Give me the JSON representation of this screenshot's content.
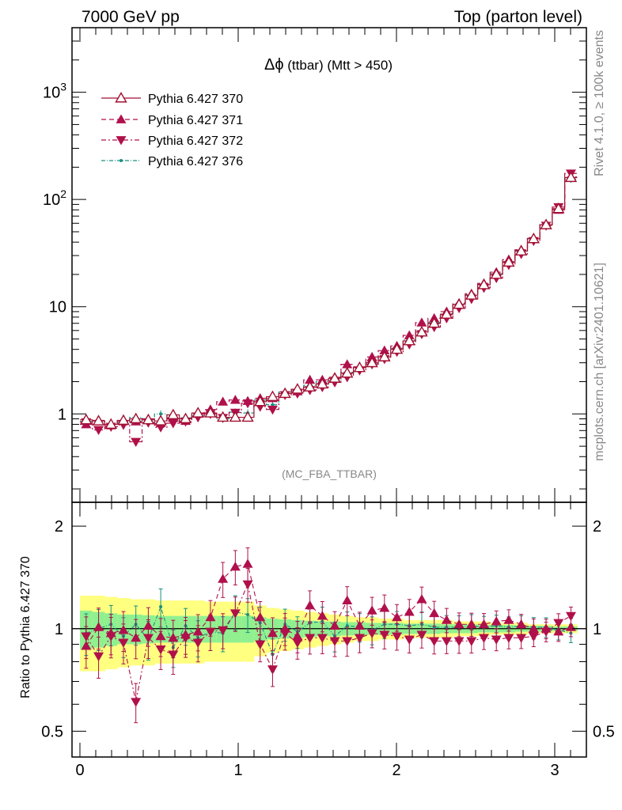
{
  "header": {
    "left": "7000 GeV pp",
    "right": "Top (parton level)"
  },
  "side_labels": {
    "rivet": "Rivet 4.1.0, ≥ 100k events",
    "mcplots": "mcplots.cern.ch [arXiv:2401.10621]"
  },
  "analysis_tag": "(MC_FBA_TTBAR)",
  "colors": {
    "s370": "#a01030",
    "s371": "#b0104c",
    "s372": "#b01048",
    "s376": "#199080",
    "band_outer": "#ffff80",
    "band_inner": "#90f090",
    "ref_line": "#000000"
  },
  "icons": {
    "triangle_open": "legend-open-triangle-icon",
    "triangle_up": "legend-filled-triangle-up-icon",
    "triangle_down": "legend-filled-triangle-down-icon",
    "dot": "legend-dot-icon"
  },
  "chart_data": [
    {
      "type": "line",
      "panel": "main",
      "title": "Δϕ (ttbar) (Mtt > 450)",
      "title_parts": {
        "symbol": "Δϕ",
        "text": " (ttbar) (Mtt > 450)"
      },
      "xlabel": "",
      "ylabel": "",
      "yscale": "log",
      "xlim": [
        -0.05,
        3.2
      ],
      "ylim": [
        0.15,
        4000
      ],
      "yticks": [
        {
          "value": 1,
          "label": "1"
        },
        {
          "value": 10,
          "label": "10"
        },
        {
          "value": 100,
          "label": "10",
          "exp": "2"
        },
        {
          "value": 1000,
          "label": "10",
          "exp": "3"
        }
      ],
      "legend": [
        {
          "name": "Pythia 6.427 370",
          "marker": "triangle-open",
          "dash": "solid"
        },
        {
          "name": "Pythia 6.427 371",
          "marker": "triangle-up",
          "dash": "dashed"
        },
        {
          "name": "Pythia 6.427 372",
          "marker": "triangle-down",
          "dash": "dashdot"
        },
        {
          "name": "Pythia 6.427 376",
          "marker": "dot",
          "dash": "dashdot"
        }
      ],
      "x": [
        0.0393,
        0.1178,
        0.1963,
        0.2749,
        0.3534,
        0.432,
        0.5105,
        0.589,
        0.6676,
        0.7461,
        0.8247,
        0.9032,
        0.9817,
        1.0603,
        1.1388,
        1.2174,
        1.2959,
        1.3744,
        1.453,
        1.5315,
        1.6101,
        1.6886,
        1.7671,
        1.8457,
        1.9242,
        2.0028,
        2.0813,
        2.1598,
        2.2384,
        2.3169,
        2.3955,
        2.474,
        2.5525,
        2.6311,
        2.7096,
        2.7882,
        2.8667,
        2.9452,
        3.0238,
        3.1023
      ],
      "series": [
        {
          "name": "Pythia 6.427 370",
          "values": [
            0.88,
            0.86,
            0.8,
            0.87,
            0.9,
            0.88,
            0.86,
            0.98,
            0.9,
            1.02,
            1.02,
            0.93,
            0.93,
            0.93,
            1.3,
            1.45,
            1.55,
            1.7,
            1.78,
            1.9,
            2.15,
            2.4,
            2.7,
            3.0,
            3.4,
            4.0,
            4.8,
            5.8,
            7.0,
            8.5,
            10.5,
            12.8,
            16.0,
            20.0,
            26.0,
            33.0,
            43.0,
            58.0,
            82.0,
            160.0
          ]
        },
        {
          "name": "Pythia 6.427 371",
          "values": [
            0.8,
            0.87,
            0.78,
            0.86,
            0.85,
            0.9,
            0.82,
            0.92,
            0.86,
            1.0,
            1.1,
            1.3,
            1.35,
            1.32,
            1.4,
            1.4,
            1.55,
            1.62,
            2.08,
            2.08,
            2.2,
            2.9,
            2.75,
            3.4,
            3.9,
            4.3,
            5.4,
            7.1,
            7.8,
            9.0,
            10.8,
            13.2,
            16.5,
            21.0,
            27.5,
            34.0,
            43.0,
            58.0,
            80.0,
            162.0
          ]
        },
        {
          "name": "Pythia 6.427 372",
          "values": [
            0.84,
            0.71,
            0.76,
            0.79,
            0.55,
            0.83,
            0.75,
            0.82,
            0.85,
            0.93,
            1.0,
            0.92,
            1.03,
            1.26,
            1.17,
            1.1,
            1.5,
            1.55,
            1.67,
            1.78,
            1.97,
            2.2,
            2.55,
            2.9,
            3.25,
            3.8,
            4.45,
            5.55,
            6.45,
            7.8,
            9.7,
            11.8,
            15.0,
            18.5,
            24.5,
            31.0,
            41.0,
            57.0,
            85.0,
            175.0
          ]
        },
        {
          "name": "Pythia 6.427 376",
          "values": [
            0.85,
            0.86,
            0.82,
            0.83,
            0.93,
            0.82,
            1.0,
            0.86,
            0.92,
            0.96,
            1.0,
            0.9,
            1.04,
            1.02,
            1.35,
            1.22,
            1.6,
            1.67,
            1.85,
            2.0,
            2.05,
            2.45,
            2.72,
            2.98,
            3.5,
            4.1,
            4.9,
            6.0,
            7.1,
            8.6,
            10.6,
            13.0,
            16.2,
            20.3,
            26.3,
            33.6,
            43.5,
            58.5,
            81.0,
            155.0
          ]
        }
      ]
    },
    {
      "type": "line",
      "panel": "ratio",
      "xlabel": "",
      "ylabel": "Ratio to Pythia 6.427 370",
      "yscale": "log",
      "xlim": [
        -0.05,
        3.2
      ],
      "ylim": [
        0.42,
        2.35
      ],
      "yticks": [
        {
          "value": 0.5,
          "label": "0.5"
        },
        {
          "value": 1,
          "label": "1"
        },
        {
          "value": 2,
          "label": "2"
        }
      ],
      "xticks": [
        {
          "value": 0,
          "label": "0"
        },
        {
          "value": 1,
          "label": "1"
        },
        {
          "value": 2,
          "label": "2"
        },
        {
          "value": 3,
          "label": "3"
        }
      ],
      "band_inner_halfwidth": [
        0.13,
        0.12,
        0.11,
        0.1,
        0.1,
        0.095,
        0.09,
        0.09,
        0.09,
        0.09,
        0.09,
        0.09,
        0.09,
        0.09,
        0.08,
        0.07,
        0.065,
        0.06,
        0.055,
        0.05,
        0.05,
        0.045,
        0.045,
        0.04,
        0.04,
        0.04,
        0.035,
        0.035,
        0.035,
        0.03,
        0.03,
        0.03,
        0.025,
        0.025,
        0.025,
        0.02,
        0.02,
        0.02,
        0.015,
        0.015
      ],
      "band_outer_halfwidth": [
        0.25,
        0.25,
        0.24,
        0.23,
        0.22,
        0.22,
        0.21,
        0.21,
        0.21,
        0.21,
        0.2,
        0.2,
        0.2,
        0.2,
        0.17,
        0.15,
        0.14,
        0.13,
        0.12,
        0.11,
        0.1,
        0.09,
        0.08,
        0.08,
        0.07,
        0.07,
        0.06,
        0.06,
        0.06,
        0.06,
        0.05,
        0.05,
        0.05,
        0.04,
        0.04,
        0.04,
        0.03,
        0.03,
        0.03,
        0.03
      ],
      "series": [
        {
          "name": "Pythia 6.427 371",
          "values": [
            0.89,
            1.01,
            0.97,
            0.99,
            0.94,
            1.02,
            0.95,
            0.94,
            0.96,
            0.98,
            1.08,
            1.4,
            1.52,
            1.55,
            1.08,
            0.97,
            1.0,
            0.95,
            1.17,
            1.09,
            1.02,
            1.21,
            1.02,
            1.13,
            1.15,
            1.08,
            1.12,
            1.22,
            1.11,
            1.06,
            1.03,
            1.03,
            1.03,
            1.05,
            1.06,
            1.03,
            1.0,
            1.0,
            0.98,
            1.01
          ]
        },
        {
          "name": "Pythia 6.427 372",
          "values": [
            0.95,
            0.83,
            0.95,
            0.91,
            0.61,
            0.94,
            0.87,
            0.84,
            0.94,
            0.91,
            0.98,
            0.99,
            1.11,
            1.35,
            0.9,
            0.76,
            0.97,
            0.91,
            0.94,
            0.94,
            0.92,
            0.92,
            0.94,
            0.97,
            0.96,
            0.95,
            0.93,
            0.96,
            0.92,
            0.92,
            0.92,
            0.92,
            0.94,
            0.93,
            0.94,
            0.94,
            0.95,
            0.98,
            1.04,
            1.09
          ]
        },
        {
          "name": "Pythia 6.427 376",
          "values": [
            0.97,
            1.0,
            1.03,
            0.95,
            1.03,
            0.93,
            1.16,
            0.88,
            1.02,
            0.94,
            0.98,
            0.97,
            1.12,
            1.1,
            1.04,
            0.84,
            1.03,
            0.98,
            1.04,
            1.05,
            0.95,
            1.02,
            1.01,
            0.99,
            1.03,
            1.03,
            1.02,
            1.03,
            1.01,
            1.01,
            1.01,
            1.02,
            1.01,
            1.02,
            1.01,
            1.02,
            1.01,
            1.01,
            0.99,
            0.97
          ]
        }
      ]
    }
  ]
}
